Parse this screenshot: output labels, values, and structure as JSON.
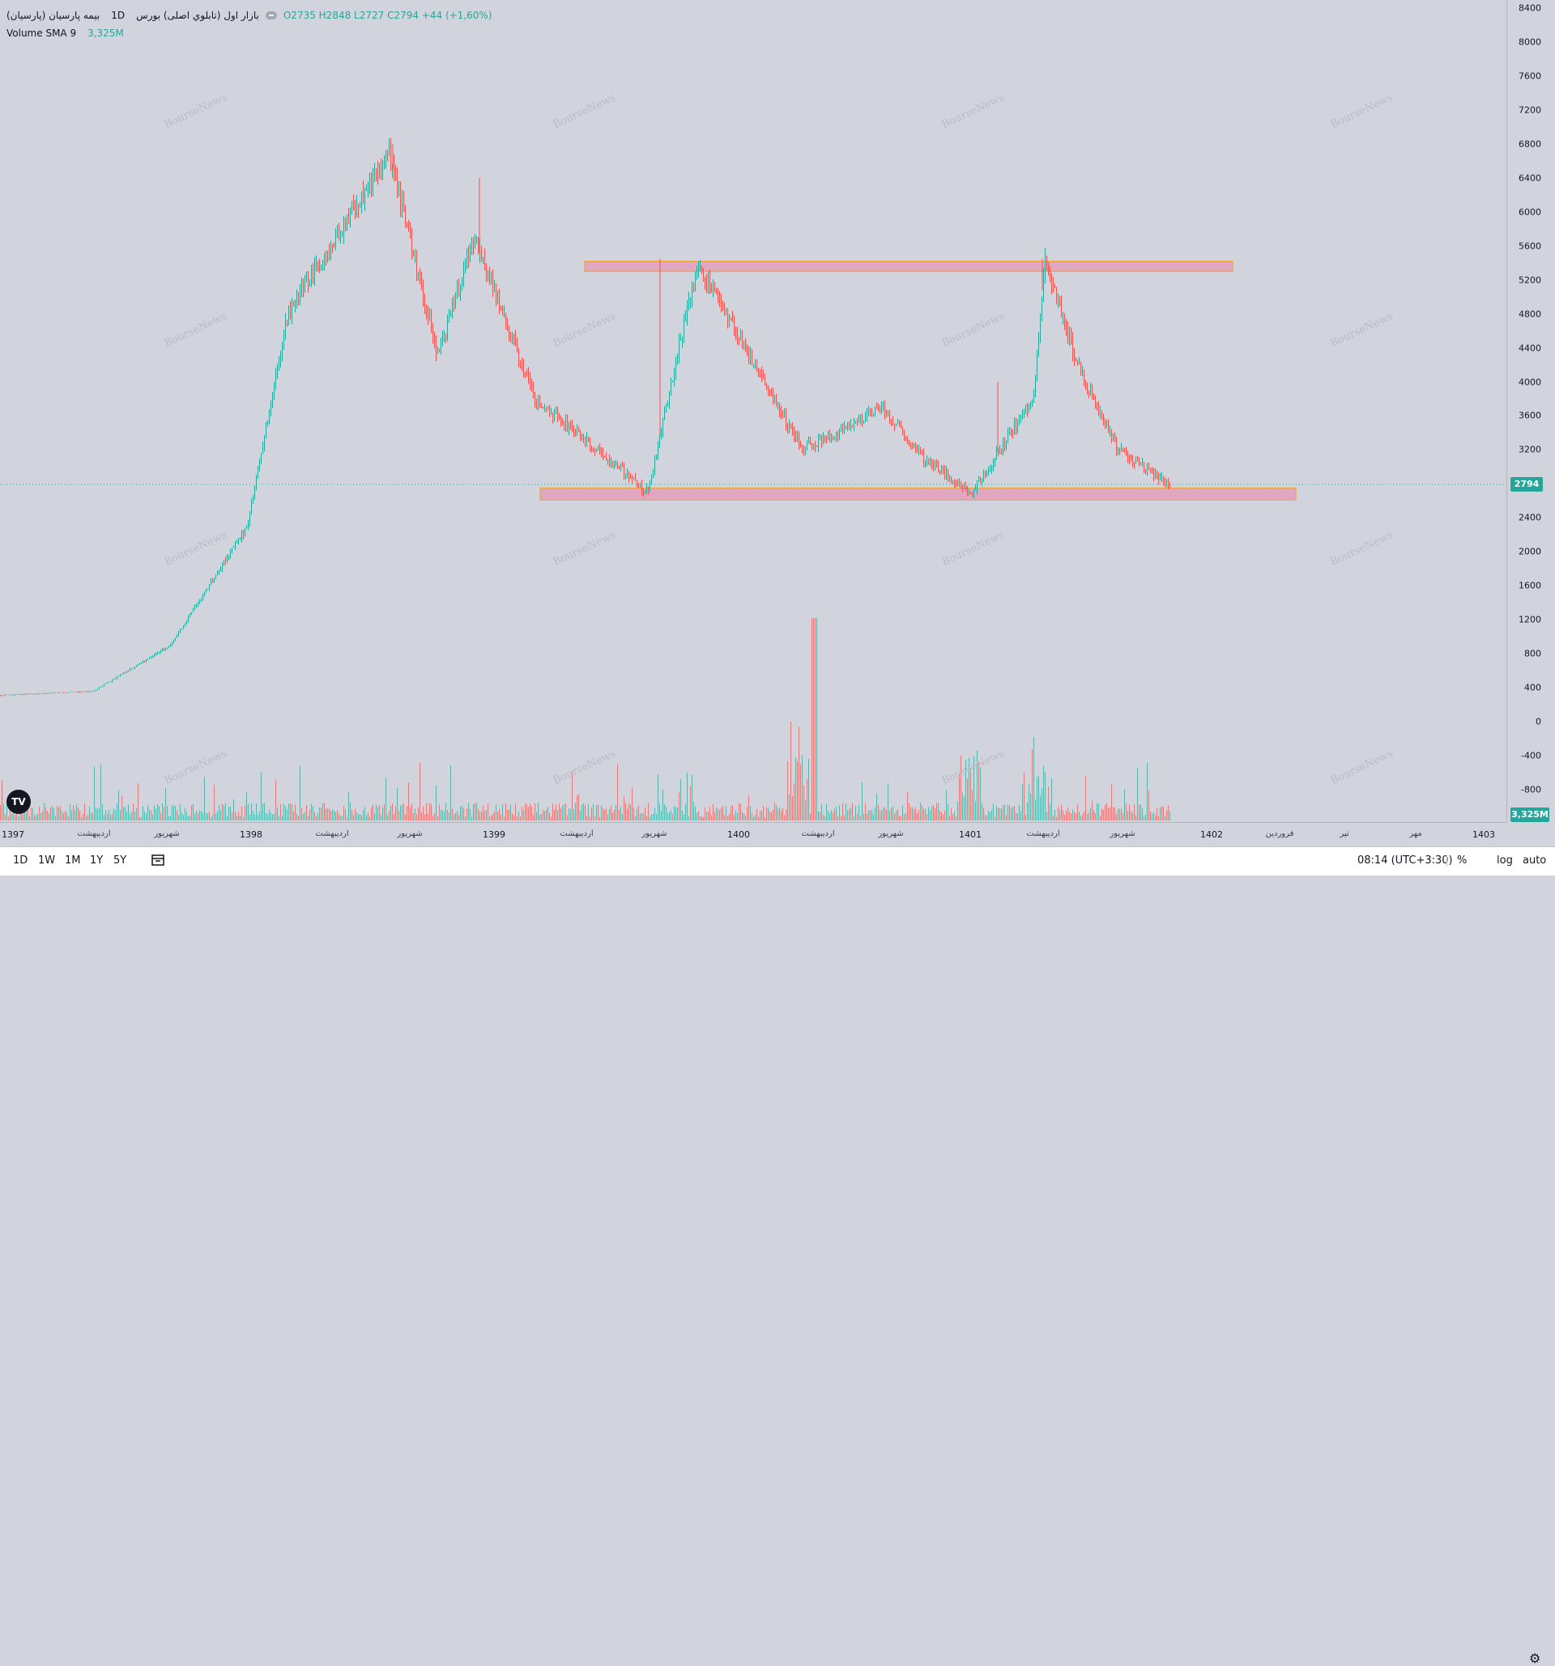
{
  "legend": {
    "symbol": "بیمه پارسیان (پارسیان)",
    "interval": "1D",
    "market": "بازار اول (تابلوي اصلی) بورس",
    "ohlc": "O2735  H2848  L2727  C2794  +44 (+1,60%)",
    "volume_label": "Volume SMA 9",
    "volume_value": "3,325M"
  },
  "watermark_text": "BourseNews",
  "price_axis": {
    "ticks": [
      "8400",
      "8000",
      "7600",
      "7200",
      "6800",
      "6400",
      "6000",
      "5600",
      "5200",
      "4800",
      "4400",
      "4000",
      "3600",
      "3200",
      "2800",
      "2400",
      "2000",
      "1600",
      "1200",
      "800",
      "400",
      "0",
      "-400",
      "-800"
    ],
    "current_price": "2794",
    "current_volume": "3,325M"
  },
  "time_axis": {
    "labels": [
      {
        "text": "1397",
        "kind": "year"
      },
      {
        "text": "اردیبهشت",
        "kind": "month"
      },
      {
        "text": "شهریور",
        "kind": "month"
      },
      {
        "text": "1398",
        "kind": "year"
      },
      {
        "text": "اردیبهشت",
        "kind": "month"
      },
      {
        "text": "شهریور",
        "kind": "month"
      },
      {
        "text": "1399",
        "kind": "year"
      },
      {
        "text": "اردیبهشت",
        "kind": "month"
      },
      {
        "text": "شهریور",
        "kind": "month"
      },
      {
        "text": "1400",
        "kind": "year"
      },
      {
        "text": "اردیبهشت",
        "kind": "month"
      },
      {
        "text": "شهریور",
        "kind": "month"
      },
      {
        "text": "1401",
        "kind": "year"
      },
      {
        "text": "اردیبهشت",
        "kind": "month"
      },
      {
        "text": "شهریور",
        "kind": "month"
      },
      {
        "text": "1402",
        "kind": "year"
      },
      {
        "text": "فروردین",
        "kind": "month"
      },
      {
        "text": "تیر",
        "kind": "month"
      },
      {
        "text": "مهر",
        "kind": "month"
      },
      {
        "text": "1403",
        "kind": "year"
      }
    ]
  },
  "bottom_bar": {
    "timeframes": [
      "1D",
      "1W",
      "1M",
      "1Y",
      "5Y"
    ],
    "clock": "08:14 (UTC+3:30)",
    "percent": "%",
    "log": "log",
    "auto": "auto"
  },
  "logo_text": "TV",
  "colors": {
    "up": "#26a69a",
    "down": "#ef5350",
    "zone_fill": "#e0a7c1",
    "zone_border": "#f0a020",
    "background": "#d1d4dc"
  },
  "chart_data": {
    "type": "candlestick",
    "ylim": [
      -800,
      8400
    ],
    "last": {
      "open": 2735,
      "high": 2848,
      "low": 2727,
      "close": 2794,
      "change": 44,
      "change_pct": 1.6
    },
    "price_path": [
      {
        "t": "1397",
        "price": 310
      },
      {
        "t": "1397-اردیبهشت",
        "price": 360
      },
      {
        "t": "1397-شهریور",
        "price": 900
      },
      {
        "t": "1398",
        "price": 2300
      },
      {
        "t": "1398-late",
        "price": 4800
      },
      {
        "t": "1398-peak",
        "price": 6700
      },
      {
        "t": "1398-شهریور",
        "price": 4300
      },
      {
        "t": "1399",
        "price": 5700
      },
      {
        "t": "1399-اردیبهشت",
        "price": 3800
      },
      {
        "t": "1399-low",
        "price": 2700
      },
      {
        "t": "1399-شهریور",
        "price": 5400
      },
      {
        "t": "1400",
        "price": 3200
      },
      {
        "t": "1400-اردیبهشت",
        "price": 3700
      },
      {
        "t": "1400-شهریور",
        "price": 3100
      },
      {
        "t": "1400-low",
        "price": 2700
      },
      {
        "t": "1401",
        "price": 3800
      },
      {
        "t": "1401-اردیبهشت",
        "price": 5400
      },
      {
        "t": "1401-mid",
        "price": 4200
      },
      {
        "t": "1401-شهریور",
        "price": 3200
      },
      {
        "t": "1401-end",
        "price": 2794
      }
    ],
    "zones": [
      {
        "name": "resistance",
        "price_low": 5300,
        "price_high": 5420
      },
      {
        "name": "support",
        "price_low": 2610,
        "price_high": 2750
      }
    ],
    "volume_sma_9": "3,325M"
  }
}
